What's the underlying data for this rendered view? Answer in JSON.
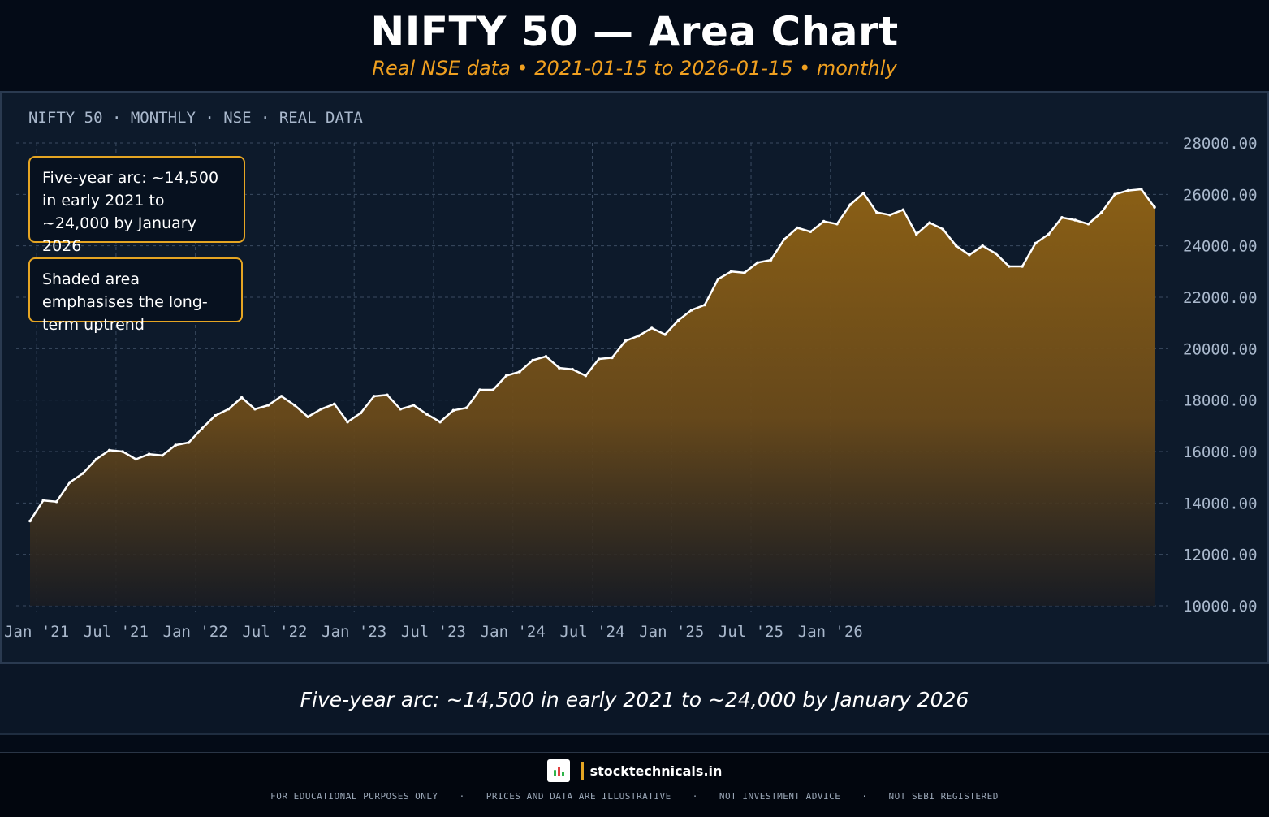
{
  "header": {
    "title": "NIFTY 50 — Area Chart",
    "subtitle": "Real NSE data • 2021-01-15 to 2026-01-15 • monthly"
  },
  "panel": {
    "label": "NIFTY 50 · MONTHLY · NSE · REAL DATA",
    "notes": [
      "Five-year arc: ~14,500 in early 2021 to ~24,000 by January 2026",
      "Shaded area emphasises the long-term uptrend"
    ]
  },
  "caption": "Five-year arc: ~14,500 in early 2021 to ~24,000 by January 2026",
  "footer": {
    "brand": "stocktechnicals.in",
    "disclaimers": [
      "FOR EDUCATIONAL PURPOSES ONLY",
      "PRICES AND DATA ARE ILLUSTRATIVE",
      "NOT INVESTMENT ADVICE",
      "NOT SEBI REGISTERED"
    ]
  },
  "colors": {
    "background": "#040b17",
    "panel": "#0d1a2b",
    "accent": "#e5a523",
    "area_top": "#8a5f15",
    "line": "#ffffff"
  },
  "chart_data": {
    "type": "area",
    "title": "NIFTY 50 — Area Chart",
    "subtitle": "Real NSE data • 2021-01-15 to 2026-01-15 • monthly",
    "xlabel": "",
    "ylabel": "",
    "x_start": "2021-01-15",
    "x_end": "2026-01-15",
    "x_ticks": [
      "Jan '21",
      "Jul '21",
      "Jan '22",
      "Jul '22",
      "Jan '23",
      "Jul '23",
      "Jan '24",
      "Jul '24",
      "Jan '25",
      "Jul '25",
      "Jan '26"
    ],
    "ylim": [
      10000,
      28000
    ],
    "y_ticks": [
      "28000.00",
      "26000.00",
      "24000.00",
      "22000.00",
      "20000.00",
      "18000.00",
      "16000.00",
      "14000.00",
      "12000.00",
      "10000.00"
    ],
    "y_axis_position": "right",
    "grid": true,
    "values": [
      13300,
      14100,
      14050,
      14800,
      15150,
      15700,
      16050,
      16000,
      15700,
      15900,
      15850,
      16250,
      16350,
      16900,
      17400,
      17650,
      18100,
      17650,
      17800,
      18150,
      17800,
      17350,
      17650,
      17850,
      17150,
      17500,
      18150,
      18200,
      17650,
      17800,
      17450,
      17150,
      17600,
      17700,
      18400,
      18400,
      18950,
      19100,
      19550,
      19700,
      19250,
      19200,
      18950,
      19600,
      19650,
      20300,
      20500,
      20800,
      20550,
      21100,
      21500,
      21700,
      22700,
      23000,
      22950,
      23350,
      23450,
      24250,
      24700,
      24550,
      24950,
      24850,
      25600,
      26050,
      25300,
      25200,
      25400,
      24450,
      24900,
      24650,
      24000,
      23650,
      24000,
      23700,
      23200,
      23200,
      24100,
      24450,
      25100,
      25000,
      24850,
      25300,
      26000,
      26150,
      26200,
      25500
    ]
  }
}
